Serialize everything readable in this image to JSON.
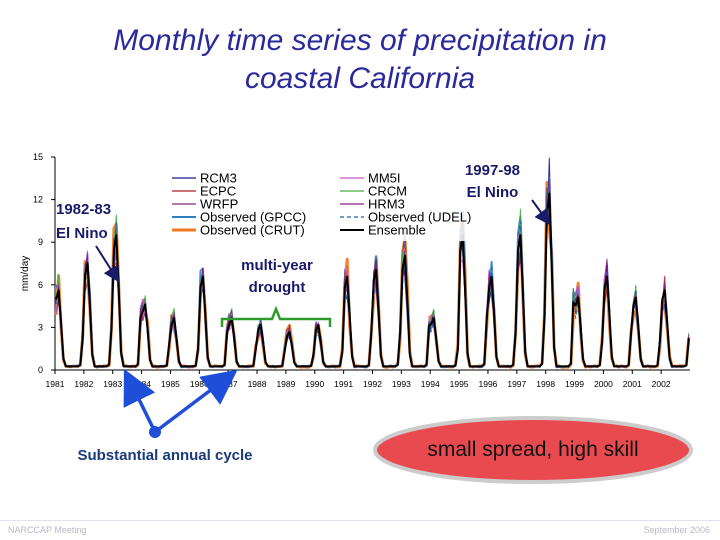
{
  "slide": {
    "title_line1": "Monthly time series of precipitation in",
    "title_line2": "coastal California",
    "annotations": {
      "el_nino_8283": [
        "1982-83",
        "El Nino"
      ],
      "el_nino_9798": [
        "1997-98",
        "El Nino"
      ],
      "drought": [
        "multi-year",
        "drought"
      ],
      "annual_cycle": "Substantial annual cycle",
      "skill": "small spread, high skill"
    },
    "footer_left": "NARCCAP Meeting",
    "footer_right": "September 2006"
  },
  "colors": {
    "title": "#2a2a9a",
    "callout_text": "#1a1a6a",
    "arrow": "#1f4fd8",
    "drought_bracket": "#2e9a2e",
    "skill_ellipse_fill": "#e84a50",
    "skill_ellipse_stroke": "#cccccc"
  },
  "chart_data": {
    "type": "line",
    "title": "",
    "xlabel": "",
    "ylabel": "mm/day",
    "ylim": [
      0,
      15
    ],
    "yticks": [
      0,
      3,
      6,
      9,
      12,
      15
    ],
    "xlim": [
      1981,
      2003
    ],
    "xticks": [
      "1981",
      "1982",
      "1983",
      "1984",
      "1985",
      "1986",
      "1987",
      "1988",
      "1989",
      "1990",
      "1991",
      "1992",
      "1993",
      "1994",
      "1995",
      "1996",
      "1997",
      "1998",
      "1999",
      "2000",
      "2001",
      "2002"
    ],
    "winter_peak_by_year": {
      "years": [
        1981,
        1982,
        1983,
        1984,
        1985,
        1986,
        1987,
        1988,
        1989,
        1990,
        1991,
        1992,
        1993,
        1994,
        1995,
        1996,
        1997,
        1998,
        1999,
        2000,
        2001,
        2002
      ],
      "peak_mm_day": [
        5.5,
        7.5,
        9.5,
        4.5,
        3.5,
        6.5,
        3.5,
        3.0,
        2.5,
        3.0,
        6.5,
        7.0,
        8.0,
        3.5,
        9.5,
        6.5,
        9.5,
        12.5,
        5.0,
        6.5,
        5.0,
        5.5
      ]
    },
    "series": [
      {
        "name": "RCM3",
        "color": "#1b1b8c",
        "dash": "",
        "width": 1
      },
      {
        "name": "ECPC",
        "color": "#b22222",
        "dash": "",
        "width": 1
      },
      {
        "name": "WRFP",
        "color": "#7a2a7a",
        "dash": "",
        "width": 1
      },
      {
        "name": "Observed (GPCC)",
        "color": "#2f7fbf",
        "dash": "",
        "width": 2
      },
      {
        "name": "Observed (CRUT)",
        "color": "#f07820",
        "dash": "",
        "width": 3
      },
      {
        "name": "MM5I",
        "color": "#d050d0",
        "dash": "",
        "width": 1
      },
      {
        "name": "CRCM",
        "color": "#40b040",
        "dash": "",
        "width": 1
      },
      {
        "name": "HRM3",
        "color": "#8a1a8a",
        "dash": "",
        "width": 1
      },
      {
        "name": "Observed (UDEL)",
        "color": "#2060b0",
        "dash": "4,3",
        "width": 1
      },
      {
        "name": "Ensemble",
        "color": "#000000",
        "dash": "",
        "width": 2
      }
    ]
  }
}
